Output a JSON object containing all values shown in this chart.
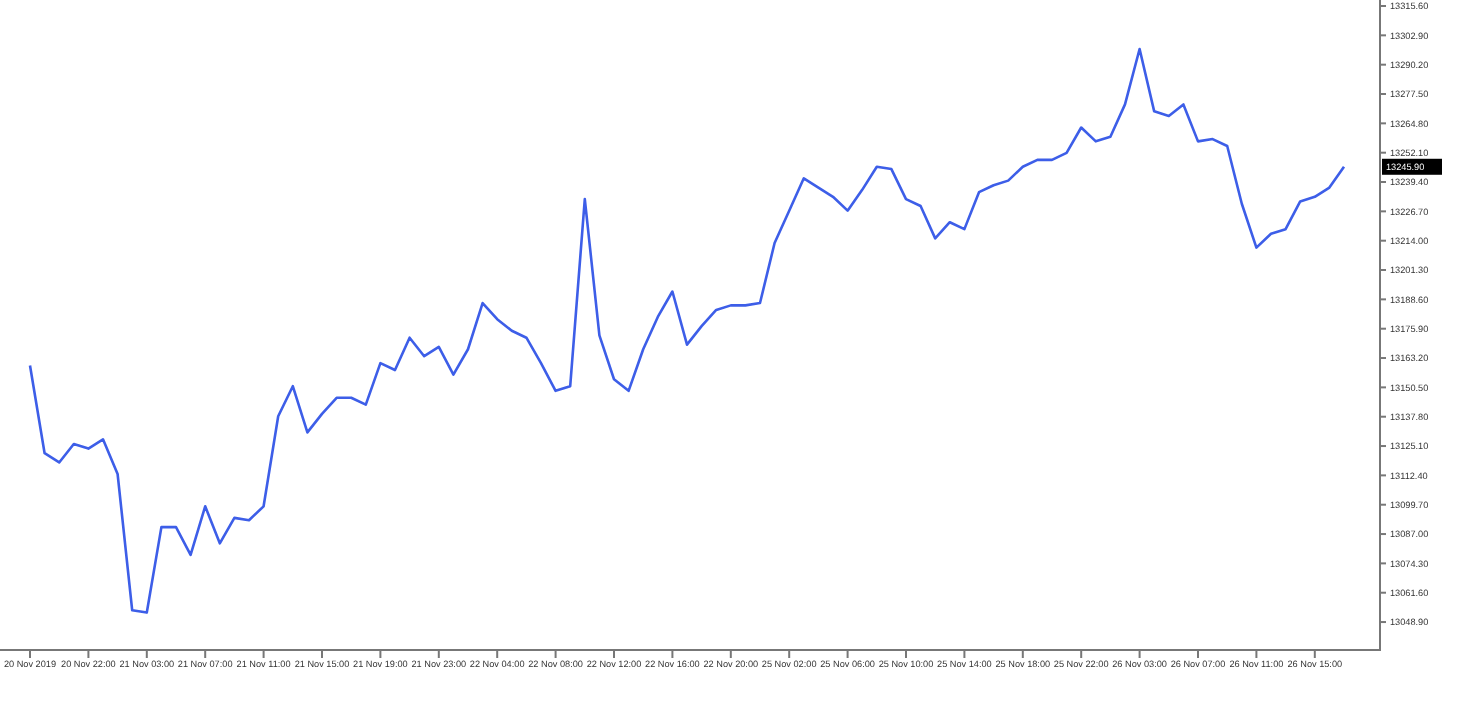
{
  "chart_data": {
    "type": "line",
    "categories": [
      "20 Nov 2019",
      null,
      null,
      null,
      "20 Nov 22:00",
      null,
      null,
      null,
      "21 Nov 03:00",
      null,
      null,
      null,
      "21 Nov 07:00",
      null,
      null,
      null,
      "21 Nov 11:00",
      null,
      null,
      null,
      "21 Nov 15:00",
      null,
      null,
      null,
      "21 Nov 19:00",
      null,
      null,
      null,
      "21 Nov 23:00",
      null,
      null,
      null,
      "22 Nov 04:00",
      null,
      null,
      null,
      "22 Nov 08:00",
      null,
      null,
      null,
      "22 Nov 12:00",
      null,
      null,
      null,
      "22 Nov 16:00",
      null,
      null,
      null,
      "22 Nov 20:00",
      null,
      null,
      null,
      "25 Nov 02:00",
      null,
      null,
      null,
      "25 Nov 06:00",
      null,
      null,
      null,
      "25 Nov 10:00",
      null,
      null,
      null,
      "25 Nov 14:00",
      null,
      null,
      null,
      "25 Nov 18:00",
      null,
      null,
      null,
      "25 Nov 22:00",
      null,
      null,
      null,
      "26 Nov 03:00",
      null,
      null,
      null,
      "26 Nov 07:00",
      null,
      null,
      null,
      "26 Nov 11:00",
      null,
      null,
      null,
      "26 Nov 15:00",
      null,
      null
    ],
    "series": [
      {
        "color": "#3d5ee8",
        "values": [
          13160,
          13122,
          13118,
          13126,
          13124,
          13128,
          13113,
          13054,
          13053,
          13090,
          13090,
          13078,
          13099,
          13083,
          13094,
          13093,
          13099,
          13138,
          13151,
          13131,
          13139,
          13146,
          13146,
          13143,
          13161,
          13158,
          13172,
          13164,
          13168,
          13156,
          13167,
          13187,
          13180,
          13175,
          13172,
          13161,
          13149,
          13151,
          13232,
          13173,
          13154,
          13149,
          13167,
          13181,
          13192,
          13169,
          13177,
          13184,
          13186,
          13186,
          13187,
          13213,
          13227,
          13241,
          13237,
          13233,
          13227,
          13236,
          13246,
          13245,
          13232,
          13229,
          13215,
          13222,
          13219,
          13235,
          13238,
          13240,
          13246,
          13249,
          13249,
          13252,
          13263,
          13257,
          13259,
          13273,
          13297,
          13270,
          13268,
          13273,
          13257,
          13258,
          13255,
          13230,
          13211,
          13217,
          13219,
          13231,
          13233,
          13237,
          13246
        ]
      }
    ],
    "ylim": [
      13036.8,
      13318.2
    ],
    "yticks": [
      {
        "value": 13048.9,
        "label": "13048.90"
      },
      {
        "value": 13061.6,
        "label": "13061.60"
      },
      {
        "value": 13074.3,
        "label": "13074.30"
      },
      {
        "value": 13087,
        "label": "13087.00"
      },
      {
        "value": 13099.7,
        "label": "13099.70"
      },
      {
        "value": 13112.4,
        "label": "13112.40"
      },
      {
        "value": 13125.1,
        "label": "13125.10"
      },
      {
        "value": 13137.8,
        "label": "13137.80"
      },
      {
        "value": 13150.5,
        "label": "13150.50"
      },
      {
        "value": 13163.2,
        "label": "13163.20"
      },
      {
        "value": 13175.9,
        "label": "13175.90"
      },
      {
        "value": 13188.6,
        "label": "13188.60"
      },
      {
        "value": 13201.3,
        "label": "13201.30"
      },
      {
        "value": 13214,
        "label": "13214.00"
      },
      {
        "value": 13226.7,
        "label": "13226.70"
      },
      {
        "value": 13239.4,
        "label": "13239.40"
      },
      {
        "value": 13252.1,
        "label": "13252.10"
      },
      {
        "value": 13264.8,
        "label": "13264.80"
      },
      {
        "value": 13277.5,
        "label": "13277.50"
      },
      {
        "value": 13290.2,
        "label": "13290.20"
      },
      {
        "value": 13302.9,
        "label": "13302.90"
      },
      {
        "value": 13315.6,
        "label": "13315.60"
      }
    ],
    "annotations": [
      "13245.90"
    ],
    "grid": false,
    "marker": "none",
    "line_style": "solid"
  }
}
